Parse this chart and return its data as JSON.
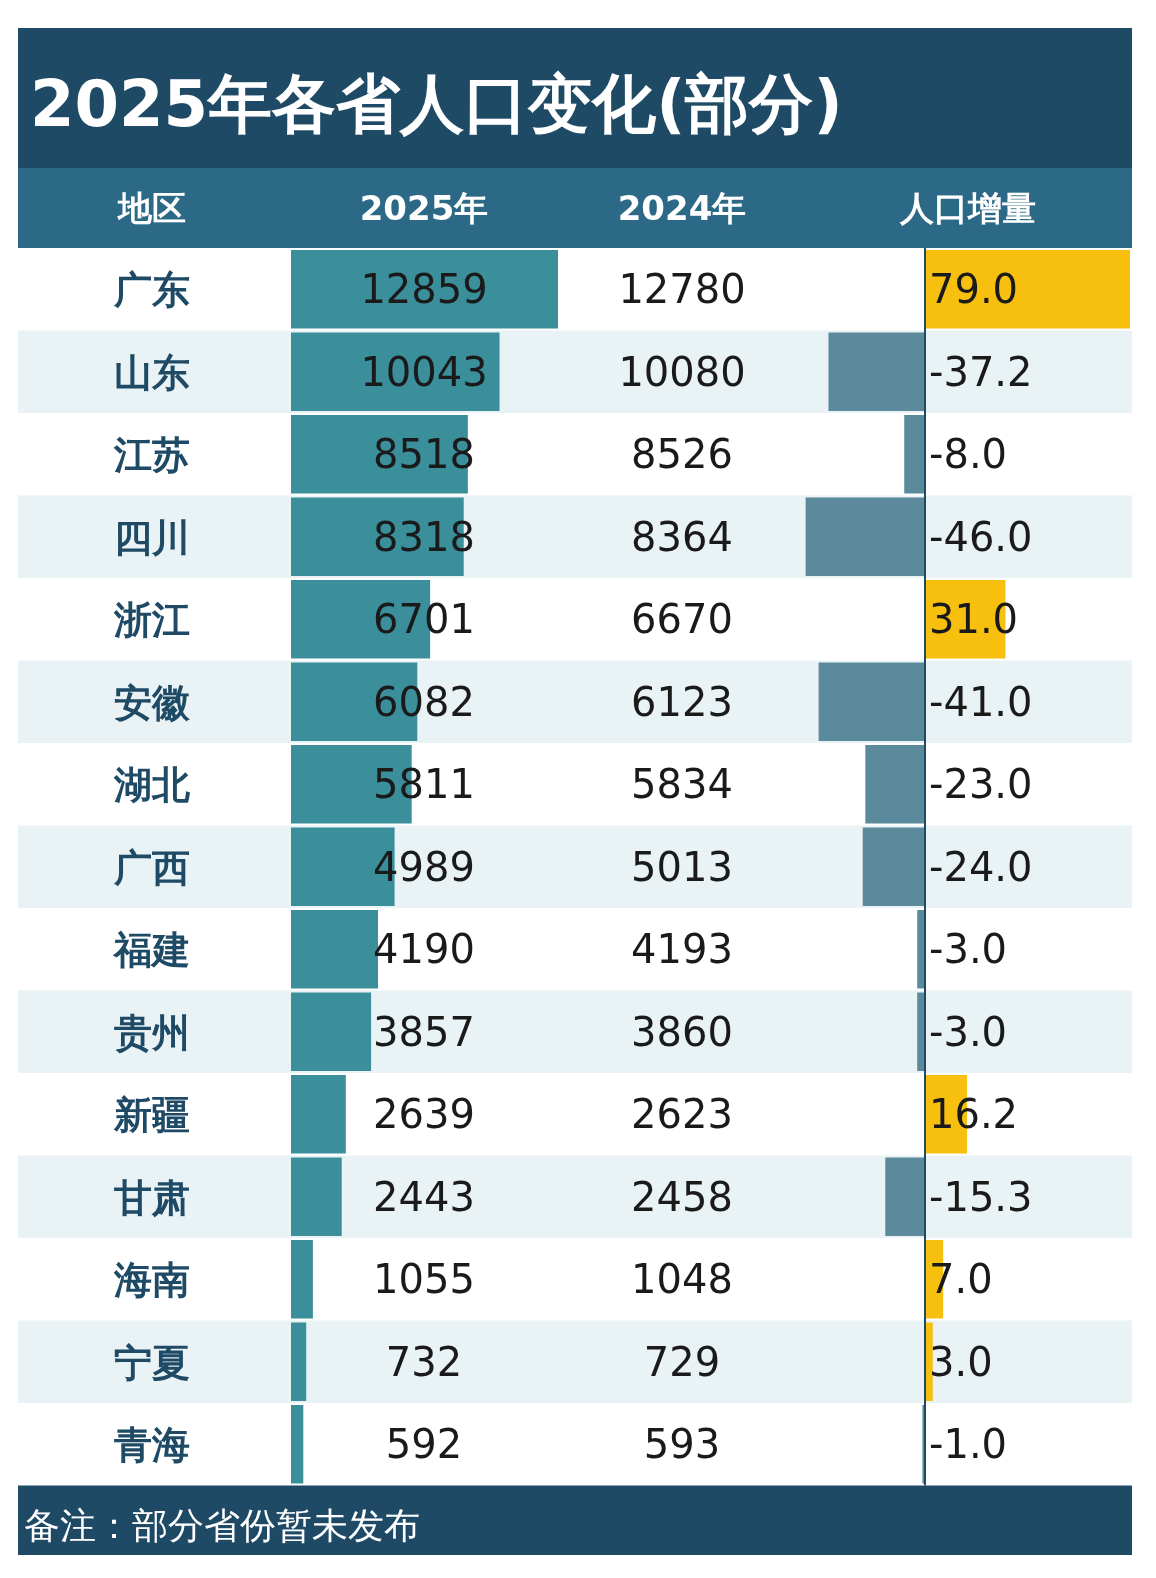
{
  "chart_data": [
    {
      "type": "bar",
      "orientation": "horizontal",
      "title": "2025年各省人口变化(部分)",
      "ylabel": "地区",
      "xlabel": "2025年",
      "categories": [
        "广东",
        "山东",
        "江苏",
        "四川",
        "浙江",
        "安徽",
        "湖北",
        "广西",
        "福建",
        "贵州",
        "新疆",
        "甘肃",
        "海南",
        "宁夏",
        "青海"
      ],
      "values": [
        12859,
        10043,
        8518,
        8318,
        6701,
        6082,
        5811,
        4989,
        4190,
        3857,
        2639,
        2443,
        1055,
        732,
        592
      ],
      "color": "#3a8f9b",
      "data_labels": true,
      "annotations": [
        "备注：部分省份暂未发布"
      ]
    },
    {
      "type": "other",
      "xlabel": "2024年",
      "data_labels": true,
      "values": [
        12780,
        10080,
        8526,
        8364,
        6670,
        6123,
        5834,
        5013,
        4193,
        3860,
        2623,
        2458,
        1048,
        729,
        593
      ]
    },
    {
      "type": "bar",
      "orientation": "horizontal",
      "xlabel": "人口增量",
      "categories": [
        null,
        null,
        null,
        null,
        null,
        null,
        null,
        null,
        null,
        null,
        null,
        null,
        null,
        null,
        null
      ],
      "values": [
        79.0,
        -37.2,
        -8.0,
        -46.0,
        31.0,
        -41.0,
        -23.0,
        -24.0,
        -3.0,
        -3.0,
        16.2,
        -15.3,
        7.0,
        3.0,
        -1.0
      ],
      "colors": [
        "#f8c00e",
        "#5a8a9c",
        "#5a8a9c",
        "#5a8a9c",
        "#f8c00e",
        "#5a8a9c",
        "#5a8a9c",
        "#5a8a9c",
        "#5a8a9c",
        "#5a8a9c",
        "#f8c00e",
        "#5a8a9c",
        "#f8c00e",
        "#f8c00e",
        "#5a8a9c"
      ],
      "ref_lines": [
        {
          "axis": "x",
          "value": 0,
          "color": "#1e4a66"
        }
      ],
      "value_labels": [
        "79.0",
        "-37.2",
        "-8.0",
        "-46.0",
        "31.0",
        "-41.0",
        "-23.0",
        "-24.0",
        "-3.0",
        "-3.0",
        "16.2",
        "-15.3",
        "7.0",
        "3.0",
        "-1.0"
      ]
    }
  ]
}
